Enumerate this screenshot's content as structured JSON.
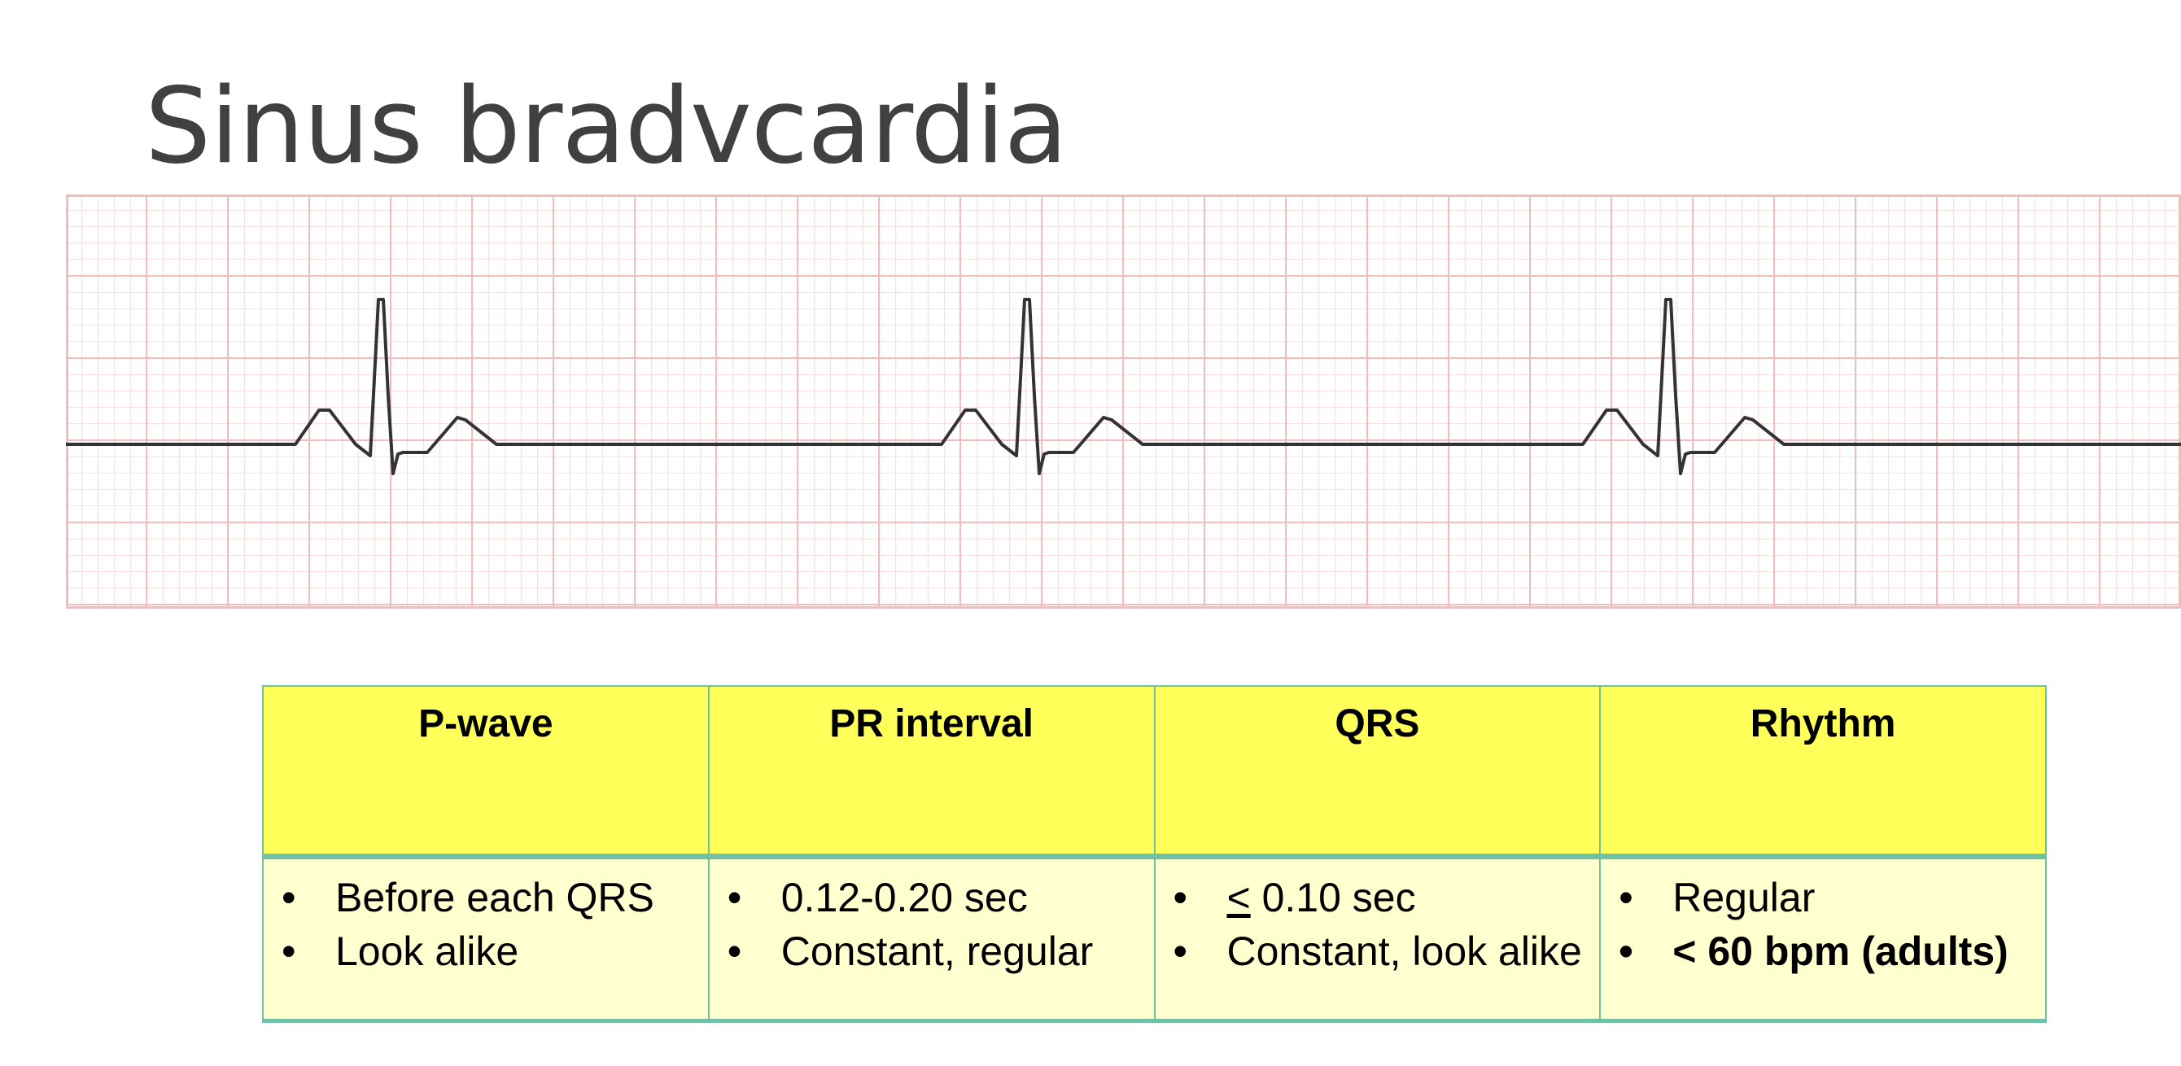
{
  "title": "Sinus bradvcardia",
  "colors": {
    "grid_minor": "#fbe0e0",
    "grid_major": "#f4bcbc",
    "trace": "#333333",
    "header_bg": "#ffff59",
    "body_bg": "#ffffd0",
    "border": "#6fc0a5"
  },
  "table": {
    "headers": [
      "P-wave",
      "PR interval",
      "QRS",
      "Rhythm"
    ],
    "cells": [
      [
        {
          "text": "Before each QRS"
        },
        {
          "text": "Look alike"
        }
      ],
      [
        {
          "text": "0.12-0.20 sec"
        },
        {
          "text": "Constant, regular"
        }
      ],
      [
        {
          "symbol": "<",
          "text": " 0.10 sec"
        },
        {
          "text": "Constant, look alike"
        }
      ],
      [
        {
          "text": "Regular"
        },
        {
          "text": "< 60 bpm (adults)",
          "bold": true
        }
      ]
    ]
  }
}
